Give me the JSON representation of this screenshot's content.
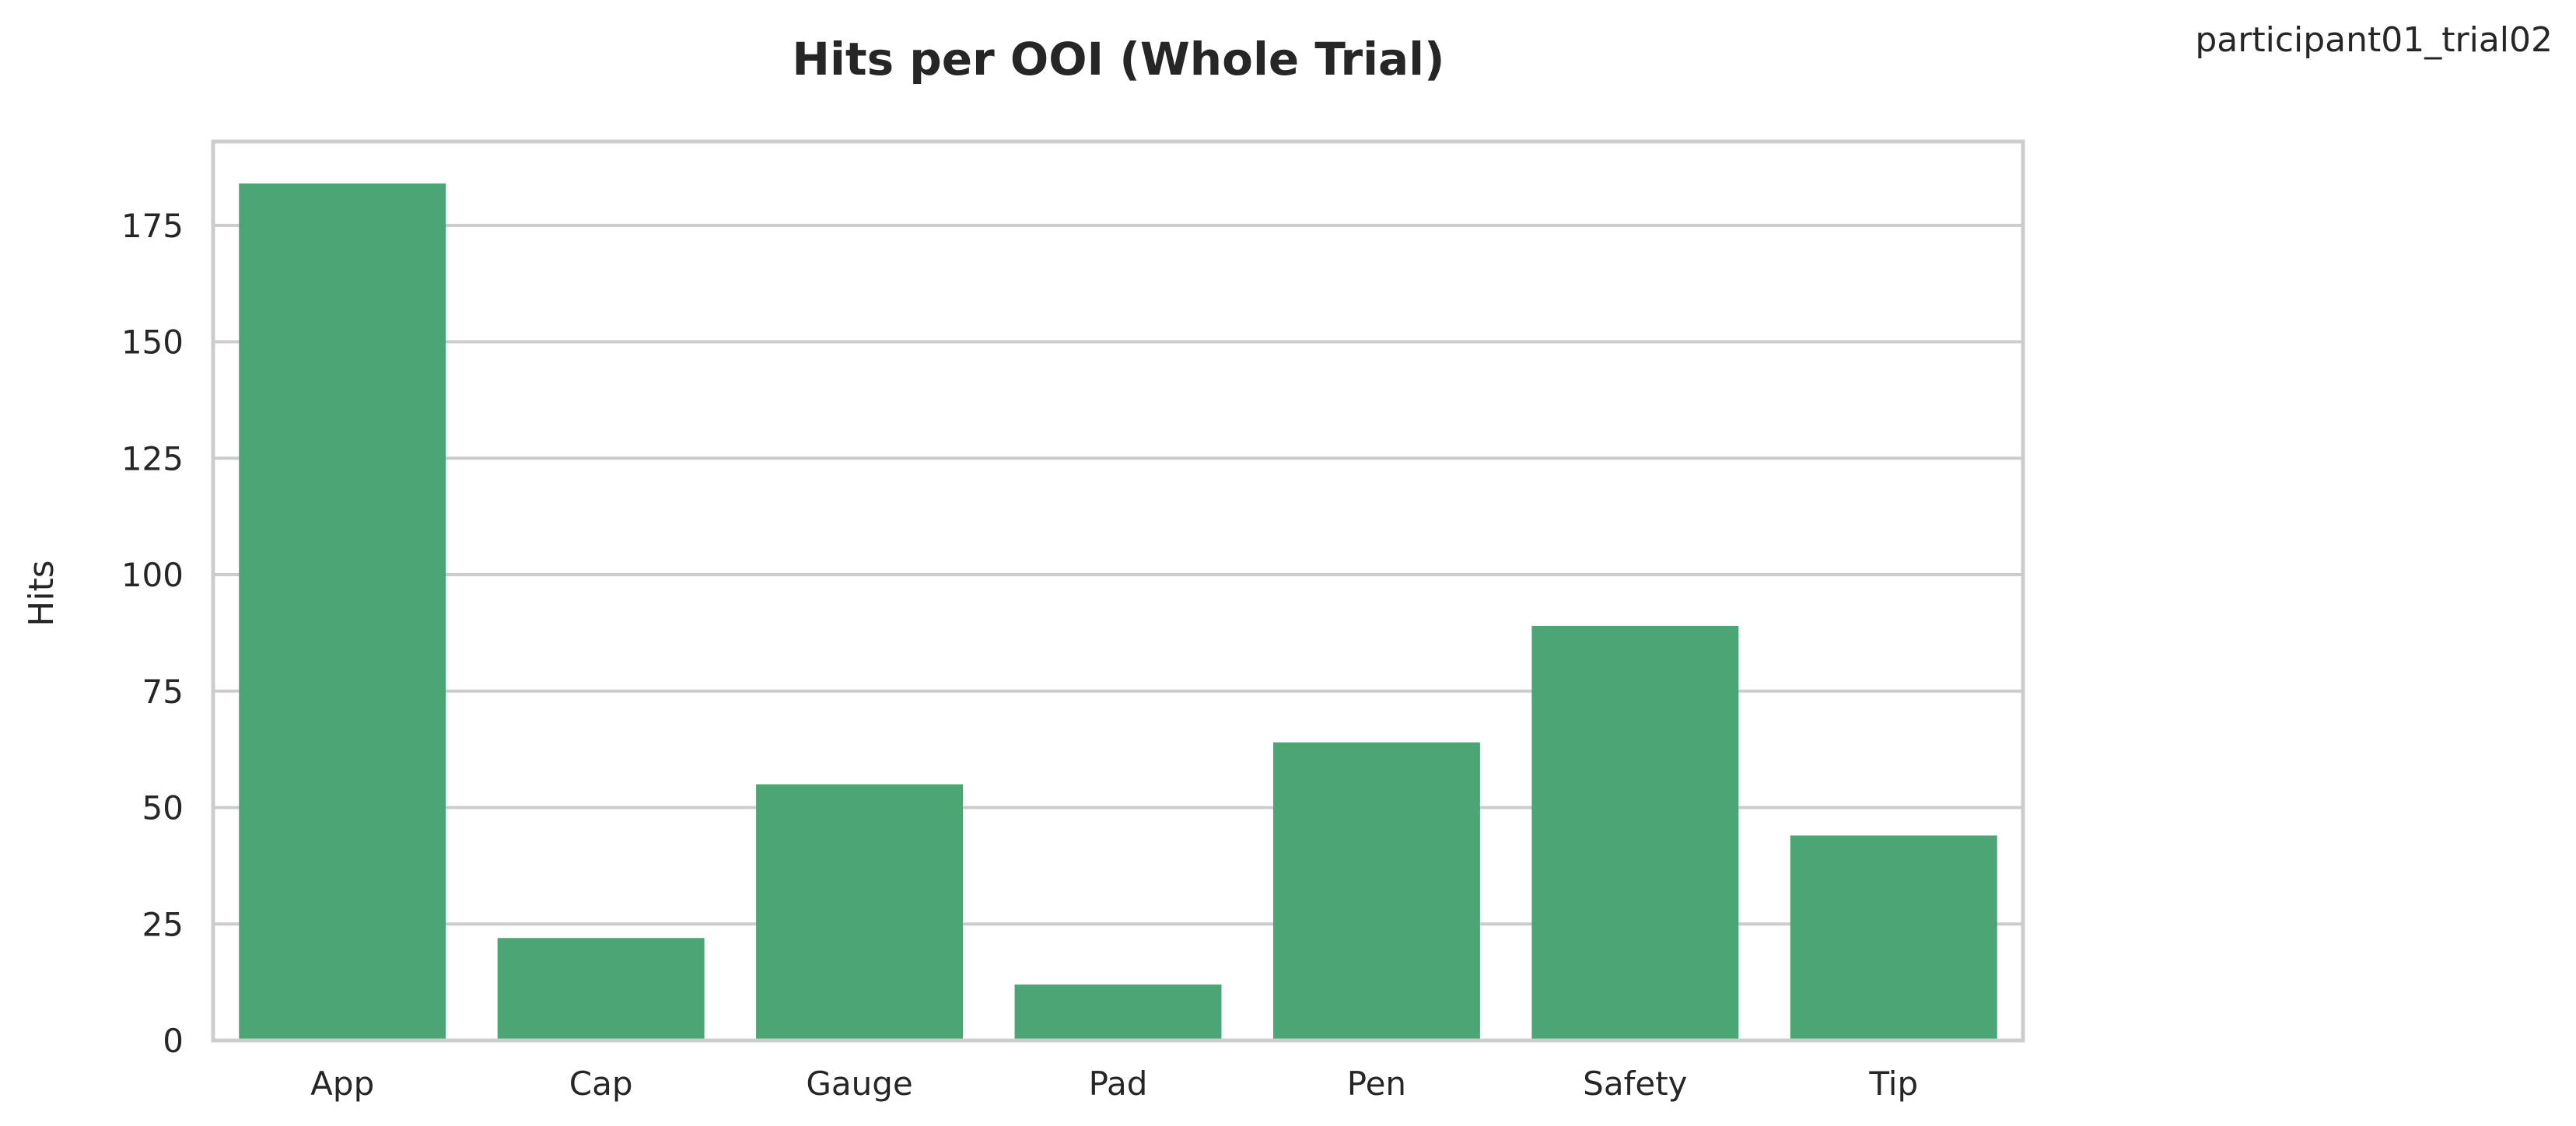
{
  "chart_data": {
    "type": "bar",
    "title": "Hits per OOI (Whole Trial)",
    "corner_label": "participant01_trial02",
    "xlabel": "",
    "ylabel": "Hits",
    "categories": [
      "App",
      "Cap",
      "Gauge",
      "Pad",
      "Pen",
      "Safety",
      "Tip"
    ],
    "values": [
      184,
      22,
      55,
      12,
      64,
      89,
      44
    ],
    "ylim": [
      0,
      193
    ],
    "yticks": [
      0,
      25,
      50,
      75,
      100,
      125,
      150,
      175
    ],
    "grid": "horizontal",
    "legend": "none",
    "bar_color": "#4ca574",
    "grid_color": "#cccccc",
    "frame_color": "#cccccc",
    "text_color": "#262626"
  }
}
